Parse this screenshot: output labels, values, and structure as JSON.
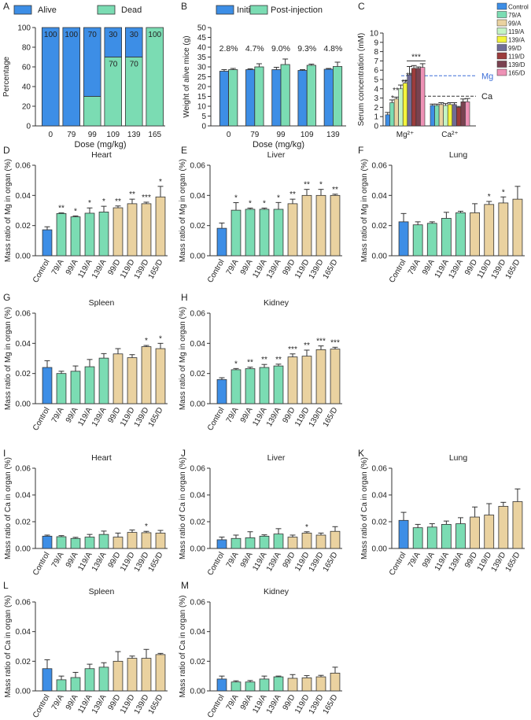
{
  "colors": {
    "blue": "#3d8ee6",
    "green": "#7bdcb3",
    "tan": "#ead2a0",
    "axis": "#333333",
    "dash_blue": "#3d6fd8",
    "dash_black": "#333333",
    "serum": [
      "#3d8ee6",
      "#7bdcb3",
      "#ead2a0",
      "#c4f4c4",
      "#f4f43c",
      "#706c96",
      "#9c3c3c",
      "#7a4250",
      "#ee92b6"
    ]
  },
  "chart_data": [
    {
      "id": "A",
      "type": "bar",
      "stacked": true,
      "ylabel": "Percentage",
      "xlabel": "Dose (mg/kg)",
      "categories": [
        "0",
        "79",
        "99",
        "109",
        "139",
        "165"
      ],
      "yticks": [
        "0",
        "20",
        "40",
        "60",
        "80",
        "100"
      ],
      "ylim": [
        0,
        100
      ],
      "legend": [
        "Alive",
        "Dead"
      ],
      "series": [
        {
          "name": "Alive",
          "values": [
            100,
            100,
            70,
            30,
            30,
            0
          ]
        },
        {
          "name": "Dead",
          "values": [
            0,
            0,
            30,
            70,
            70,
            100
          ]
        }
      ],
      "data_labels": [
        {
          "cat": "0",
          "series": "Alive",
          "text": "100"
        },
        {
          "cat": "79",
          "series": "Alive",
          "text": "100"
        },
        {
          "cat": "99",
          "series": "Alive",
          "text": "70"
        },
        {
          "cat": "109",
          "series": "Alive",
          "text": "30"
        },
        {
          "cat": "109",
          "series": "Dead",
          "text": "70"
        },
        {
          "cat": "139",
          "series": "Alive",
          "text": "30"
        },
        {
          "cat": "139",
          "series": "Dead",
          "text": "70"
        },
        {
          "cat": "165",
          "series": "Dead",
          "text": "100"
        }
      ]
    },
    {
      "id": "B",
      "type": "bar",
      "grouped": true,
      "ylabel": "Weight of alive mice (g)",
      "xlabel": "Dose (mg/kg)",
      "categories": [
        "0",
        "79",
        "99",
        "109",
        "139"
      ],
      "yticks": [
        "0",
        "5",
        "10",
        "15",
        "20",
        "25",
        "30",
        "35",
        "40",
        "45",
        "50"
      ],
      "ylim": [
        0,
        50
      ],
      "legend": [
        "Initial",
        "Post-injection"
      ],
      "series": [
        {
          "name": "Initial",
          "values": [
            27.8,
            28.6,
            28.6,
            28.2,
            28.8
          ],
          "errors": [
            0.8,
            0.4,
            1.2,
            0.4,
            0.4
          ]
        },
        {
          "name": "Post-injection",
          "values": [
            28.6,
            30.0,
            31.2,
            30.8,
            30.2
          ],
          "errors": [
            0.6,
            1.6,
            2.8,
            0.6,
            2.2
          ]
        }
      ],
      "annotations": [
        "2.8%",
        "4.7%",
        "9.0%",
        "9.3%",
        "4.8%"
      ]
    },
    {
      "id": "C",
      "type": "bar",
      "grouped": true,
      "ylabel": "Serum concentration (mM)",
      "categories": [
        "Mg²⁺",
        "Ca²⁺"
      ],
      "yticks": [
        "0",
        "1",
        "2",
        "3",
        "4",
        "5",
        "6",
        "7",
        "8",
        "9",
        "10"
      ],
      "ylim": [
        0,
        10
      ],
      "legend": [
        "Control",
        "79/A",
        "99/A",
        "119/A",
        "139/A",
        "99/D",
        "119/D",
        "139/D",
        "165/D"
      ],
      "series": [
        {
          "name": "Control",
          "values": [
            1.2,
            2.2
          ],
          "errors": [
            0.25,
            0.15
          ]
        },
        {
          "name": "79/A",
          "values": [
            2.5,
            2.2
          ],
          "errors": [
            0.3,
            0.15
          ]
        },
        {
          "name": "99/A",
          "values": [
            2.9,
            2.3
          ],
          "errors": [
            0.2,
            0.2
          ]
        },
        {
          "name": "119/A",
          "values": [
            4.0,
            2.2
          ],
          "errors": [
            0.4,
            0.2
          ]
        },
        {
          "name": "139/A",
          "values": [
            4.6,
            2.3
          ],
          "errors": [
            0.3,
            0.2
          ]
        },
        {
          "name": "99/D",
          "values": [
            5.5,
            2.3
          ],
          "errors": [
            0.9,
            0.2
          ]
        },
        {
          "name": "119/D",
          "values": [
            6.2,
            2.0
          ],
          "errors": [
            0.3,
            0.1
          ]
        },
        {
          "name": "139/D",
          "values": [
            6.2,
            2.6
          ],
          "errors": [
            0.15,
            0.3
          ]
        },
        {
          "name": "165/D",
          "values": [
            6.3,
            2.6
          ],
          "errors": [
            0.4,
            0.35
          ]
        }
      ],
      "reference_lines": [
        {
          "label": "Mg",
          "value": 5.4
        },
        {
          "label": "Ca",
          "value": 3.2
        }
      ],
      "annotations": [
        "*",
        "**",
        "**",
        "**",
        "***"
      ]
    },
    {
      "id": "D",
      "type": "bar",
      "title": "Heart",
      "ylabel": "Mass ratio of Mg in organ (%)",
      "categories": [
        "Control",
        "79/A",
        "99/A",
        "119/A",
        "139/A",
        "99/D",
        "119/D",
        "139/D",
        "165/D"
      ],
      "yticks": [
        "0.00",
        "0.02",
        "0.04",
        "0.06"
      ],
      "ylim": [
        0,
        0.06
      ],
      "values": [
        0.0172,
        0.028,
        0.0258,
        0.0282,
        0.029,
        0.0318,
        0.0345,
        0.0345,
        0.039
      ],
      "errors": [
        0.002,
        0.0004,
        0.0006,
        0.0035,
        0.0038,
        0.0012,
        0.003,
        0.001,
        0.007
      ],
      "significance": [
        "",
        "**",
        "*",
        "*",
        "*",
        "**",
        "**",
        "***",
        "*"
      ]
    },
    {
      "id": "E",
      "type": "bar",
      "title": "Liver",
      "ylabel": "Mass ratio of Mg in organ (%)",
      "categories": [
        "Control",
        "79/A",
        "99/A",
        "119/A",
        "139/A",
        "99/D",
        "119/D",
        "139/D",
        "165/D"
      ],
      "yticks": [
        "0.00",
        "0.02",
        "0.04",
        "0.06"
      ],
      "ylim": [
        0,
        0.06
      ],
      "values": [
        0.0182,
        0.0302,
        0.0308,
        0.0308,
        0.0308,
        0.0345,
        0.04,
        0.04,
        0.04
      ],
      "errors": [
        0.0035,
        0.005,
        0.0008,
        0.0008,
        0.0045,
        0.003,
        0.004,
        0.004,
        0.0008
      ],
      "significance": [
        "",
        "*",
        "*",
        "*",
        "*",
        "**",
        "**",
        "*",
        "**"
      ]
    },
    {
      "id": "F",
      "type": "bar",
      "title": "Lung",
      "ylabel": "Mass ratio of Mg in organ (%)",
      "categories": [
        "Control",
        "79/A",
        "99/A",
        "119/A",
        "139/A",
        "99/D",
        "119/D",
        "139/D",
        "165/D"
      ],
      "yticks": [
        "0.00",
        "0.02",
        "0.04",
        "0.06"
      ],
      "ylim": [
        0,
        0.06
      ],
      "values": [
        0.0225,
        0.0205,
        0.0215,
        0.0248,
        0.0285,
        0.0285,
        0.034,
        0.035,
        0.0375
      ],
      "errors": [
        0.0055,
        0.002,
        0.001,
        0.004,
        0.001,
        0.006,
        0.002,
        0.004,
        0.0085
      ],
      "significance": [
        "",
        "",
        "",
        "",
        "",
        "",
        "*",
        "*",
        ""
      ]
    },
    {
      "id": "G",
      "type": "bar",
      "title": "Spleen",
      "ylabel": "Mass ratio of Mg in organ (%)",
      "categories": [
        "Control",
        "79/A",
        "99/A",
        "119/A",
        "139/A",
        "99/D",
        "119/D",
        "139/D",
        "165/D"
      ],
      "yticks": [
        "0.00",
        "0.02",
        "0.04",
        "0.06"
      ],
      "ylim": [
        0,
        0.06
      ],
      "values": [
        0.024,
        0.02,
        0.0215,
        0.0245,
        0.0302,
        0.033,
        0.0305,
        0.0378,
        0.0365
      ],
      "errors": [
        0.0045,
        0.0015,
        0.0035,
        0.0048,
        0.003,
        0.0035,
        0.002,
        0.0008,
        0.0035
      ],
      "significance": [
        "",
        "",
        "",
        "",
        "",
        "",
        "",
        "*",
        "*"
      ]
    },
    {
      "id": "H",
      "type": "bar",
      "title": "Kidney",
      "ylabel": "Mass ratio of Mg in organ (%)",
      "categories": [
        "Control",
        "79/A",
        "99/A",
        "119/A",
        "139/A",
        "99/D",
        "119/D",
        "139/D",
        "165/D"
      ],
      "yticks": [
        "0.00",
        "0.02",
        "0.04",
        "0.06"
      ],
      "ylim": [
        0,
        0.06
      ],
      "values": [
        0.016,
        0.0225,
        0.0232,
        0.024,
        0.025,
        0.031,
        0.0315,
        0.0358,
        0.0362
      ],
      "errors": [
        0.0012,
        0.0008,
        0.001,
        0.002,
        0.0012,
        0.002,
        0.004,
        0.0025,
        0.0012
      ],
      "significance": [
        "",
        "*",
        "**",
        "**",
        "**",
        "***",
        "**",
        "***",
        "***"
      ]
    },
    {
      "id": "I",
      "type": "bar",
      "title": "Heart",
      "ylabel": "Mass ratio of Ca in organ (%)",
      "categories": [
        "Control",
        "79/A",
        "99/A",
        "119/A",
        "139/A",
        "99/D",
        "119/D",
        "139/D",
        "165/D"
      ],
      "yticks": [
        "0.00",
        "0.02",
        "0.04",
        "0.06"
      ],
      "ylim": [
        0,
        0.06
      ],
      "values": [
        0.0092,
        0.0088,
        0.0075,
        0.0085,
        0.0105,
        0.0085,
        0.012,
        0.0118,
        0.0115
      ],
      "errors": [
        0.0008,
        0.0008,
        0.0008,
        0.002,
        0.0025,
        0.003,
        0.0018,
        0.001,
        0.002
      ],
      "significance": [
        "",
        "",
        "",
        "",
        "",
        "",
        "",
        "*",
        ""
      ]
    },
    {
      "id": "J",
      "type": "bar",
      "title": "Liver",
      "ylabel": "Mass ratio of Ca in organ (%)",
      "categories": [
        "Control",
        "79/A",
        "99/A",
        "119/A",
        "139/A",
        "99/D",
        "119/D",
        "139/D",
        "165/D"
      ],
      "yticks": [
        "0.00",
        "0.02",
        "0.04",
        "0.06"
      ],
      "ylim": [
        0,
        0.06
      ],
      "values": [
        0.0065,
        0.0075,
        0.008,
        0.0092,
        0.0108,
        0.0085,
        0.0115,
        0.01,
        0.0128
      ],
      "errors": [
        0.002,
        0.0025,
        0.0045,
        0.001,
        0.004,
        0.0015,
        0.001,
        0.0015,
        0.0035
      ],
      "significance": [
        "",
        "",
        "",
        "",
        "",
        "",
        "*",
        "",
        ""
      ]
    },
    {
      "id": "K",
      "type": "bar",
      "title": "Lung",
      "ylabel": "Mass ratio of Ca in organ (%)",
      "categories": [
        "Control",
        "79/A",
        "99/A",
        "119/A",
        "139/A",
        "99/D",
        "119/D",
        "139/D",
        "165/D"
      ],
      "yticks": [
        "0.00",
        "0.02",
        "0.04",
        "0.06"
      ],
      "ylim": [
        0,
        0.06
      ],
      "values": [
        0.021,
        0.0155,
        0.016,
        0.018,
        0.0185,
        0.0235,
        0.025,
        0.0315,
        0.035
      ],
      "errors": [
        0.006,
        0.0025,
        0.0025,
        0.0025,
        0.0045,
        0.0075,
        0.0085,
        0.003,
        0.0095
      ],
      "significance": [
        "",
        "",
        "",
        "",
        "",
        "",
        "",
        "",
        ""
      ]
    },
    {
      "id": "L",
      "type": "bar",
      "title": "Spleen",
      "ylabel": "Mass ratio of Ca in organ (%)",
      "categories": [
        "Control",
        "79/A",
        "99/A",
        "119/A",
        "139/A",
        "99/D",
        "119/D",
        "139/D",
        "165/D"
      ],
      "yticks": [
        "0.00",
        "0.02",
        "0.04",
        "0.06"
      ],
      "ylim": [
        0,
        0.06
      ],
      "values": [
        0.015,
        0.0075,
        0.009,
        0.015,
        0.016,
        0.02,
        0.022,
        0.022,
        0.0245
      ],
      "errors": [
        0.006,
        0.0025,
        0.0035,
        0.003,
        0.003,
        0.0065,
        0.0015,
        0.006,
        0.0008
      ],
      "significance": [
        "",
        "",
        "",
        "",
        "",
        "",
        "",
        "",
        ""
      ]
    },
    {
      "id": "M",
      "type": "bar",
      "title": "Kidney",
      "ylabel": "Mass ratio of Ca in organ (%)",
      "categories": [
        "Control",
        "79/A",
        "99/A",
        "119/A",
        "139/A",
        "99/D",
        "119/D",
        "139/D",
        "165/D"
      ],
      "yticks": [
        "0.00",
        "0.02",
        "0.04",
        "0.06"
      ],
      "ylim": [
        0,
        0.06
      ],
      "values": [
        0.008,
        0.006,
        0.006,
        0.008,
        0.0095,
        0.0085,
        0.0088,
        0.0095,
        0.012
      ],
      "errors": [
        0.002,
        0.0008,
        0.001,
        0.002,
        0.0005,
        0.0025,
        0.0015,
        0.001,
        0.004
      ],
      "significance": [
        "",
        "",
        "",
        "",
        "",
        "",
        "",
        "",
        ""
      ]
    }
  ]
}
